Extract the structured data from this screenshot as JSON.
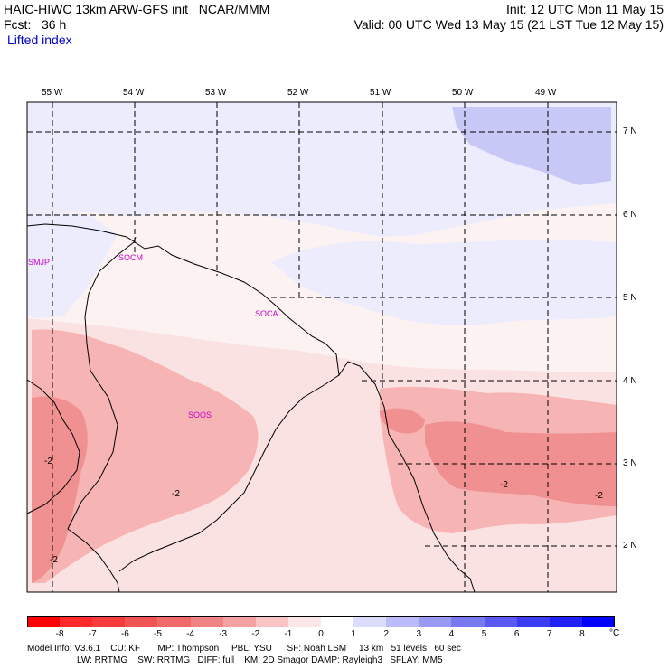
{
  "header": {
    "line1_left": "HAIC-HIWC 13km ARW-GFS init   NCAR/MMM",
    "line1_right": "Init: 12 UTC Mon 11 May 15",
    "line2_left": "Fcst:   36 h",
    "line2_right": "Valid: 00 UTC Wed 13 May 15 (21 LST Tue 12 May 15)",
    "field_name": "Lifted index"
  },
  "map": {
    "lon_labels": [
      "55 W",
      "54 W",
      "53 W",
      "52 W",
      "51 W",
      "50 W",
      "49 W"
    ],
    "lat_labels": [
      "7 N",
      "6 N",
      "5 N",
      "4 N",
      "3 N",
      "2 N"
    ],
    "stations": [
      "SMJP",
      "SOCM",
      "SOCA",
      "SOOS"
    ],
    "contour_labels": [
      "-2",
      "-2",
      "-2",
      "-2",
      "-2"
    ],
    "colors": {
      "grid": "#000000",
      "coast": "#000000",
      "station": "#cc00cc"
    }
  },
  "colorbar": {
    "ticks": [
      "-8",
      "-7",
      "-6",
      "-5",
      "-4",
      "-3",
      "-2",
      "-1",
      "0",
      "1",
      "2",
      "3",
      "4",
      "5",
      "6",
      "7",
      "8"
    ],
    "unit": "°C",
    "colors": [
      "#ff0000",
      "#ff2a2a",
      "#f43c3c",
      "#f05454",
      "#f06a6a",
      "#f08484",
      "#f4a0a0",
      "#f8c4c4",
      "#fde6e6",
      "#ffffff",
      "#dcdcfc",
      "#bcbcfc",
      "#9a9af4",
      "#7a7af0",
      "#5a5af0",
      "#3c3cf4",
      "#2020f8",
      "#0000ff"
    ]
  },
  "footer": {
    "line1": "Model Info: V3.6.1    CU: KF       MP: Thompson     PBL: YSU      SF: Noah LSM     13 km   51 levels   60 sec",
    "line2": "LW: RRTMG    SW: RRTMG   DIFF: full    KM: 2D Smagor DAMP: Rayleigh3   SFLAY: MM5"
  }
}
